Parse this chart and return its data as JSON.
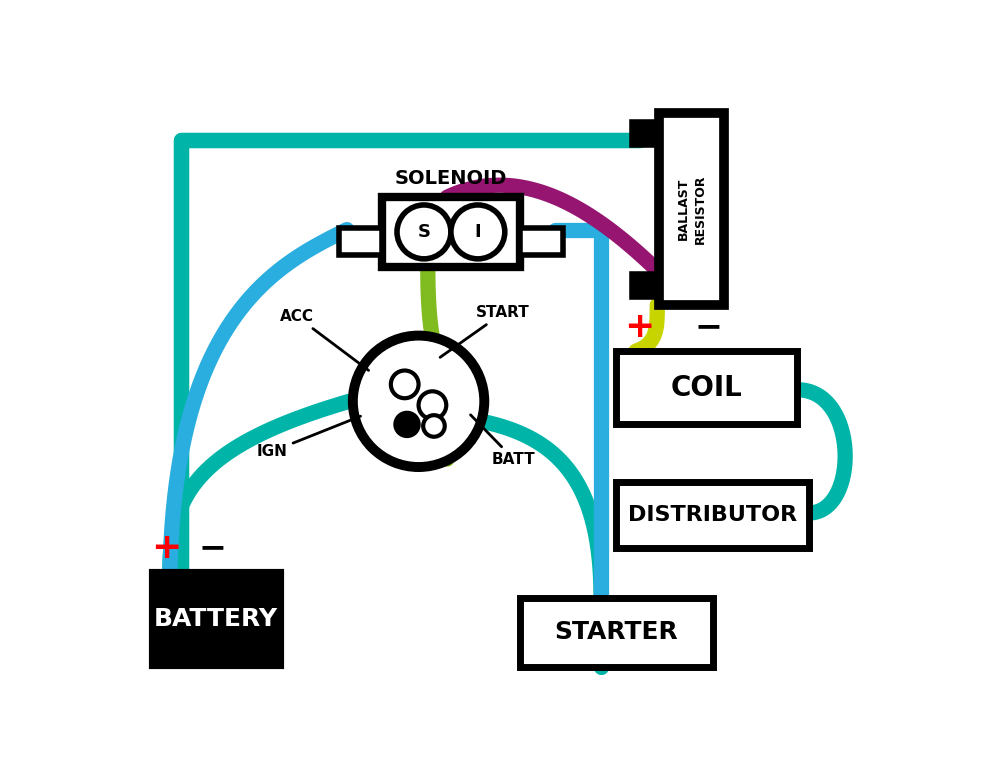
{
  "bg_color": "#ffffff",
  "wire_teal": "#00b5a8",
  "wire_blue": "#2aaddf",
  "wire_purple": "#951570",
  "wire_yg": "#c8d400",
  "wire_green": "#80bb20",
  "lw": 11,
  "solenoid_label": "SOLENOID",
  "battery_label": "BATTERY",
  "coil_label": "COIL",
  "distributor_label": "DISTRIBUTOR",
  "starter_label": "STARTER",
  "plus_color": "#ff0000",
  "minus_color": "#000000",
  "acc": "ACC",
  "ign": "IGN",
  "start": "START",
  "batt": "BATT"
}
